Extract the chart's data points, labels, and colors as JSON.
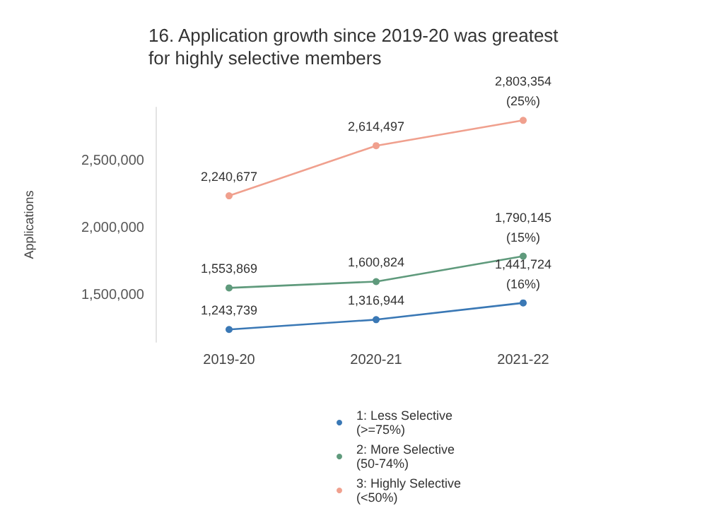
{
  "chart_data": {
    "type": "line",
    "title": "16. Application growth since 2019-20 was greatest\nfor highly selective members",
    "ylabel": "Applications",
    "categories": [
      "2019-20",
      "2020-21",
      "2021-22"
    ],
    "series": [
      {
        "name": "1: Less Selective\n(>=75%)",
        "color": "#3a78b5",
        "values": [
          1243739,
          1316944,
          1441724
        ],
        "value_labels": [
          "1,243,739",
          "1,316,944",
          "1,441,724\n(16%)"
        ]
      },
      {
        "name": "2: More Selective\n(50-74%)",
        "color": "#5f9a7c",
        "values": [
          1553869,
          1600824,
          1790145
        ],
        "value_labels": [
          "1,553,869",
          "1,600,824",
          "1,790,145\n(15%)"
        ]
      },
      {
        "name": "3: Highly Selective\n(<50%)",
        "color": "#f0a08e",
        "values": [
          2240677,
          2614497,
          2803354
        ],
        "value_labels": [
          "2,240,677",
          "2,614,497",
          "2,803,354\n(25%)"
        ]
      }
    ],
    "ylim": [
      1150000,
      2900000
    ],
    "yticks": [
      {
        "value": 1500000,
        "label": "1,500,000"
      },
      {
        "value": 2000000,
        "label": "2,000,000"
      },
      {
        "value": 2500000,
        "label": "2,500,000"
      }
    ],
    "grid": false,
    "legend": "bottom",
    "marker": "circle",
    "line_style": "solid"
  }
}
